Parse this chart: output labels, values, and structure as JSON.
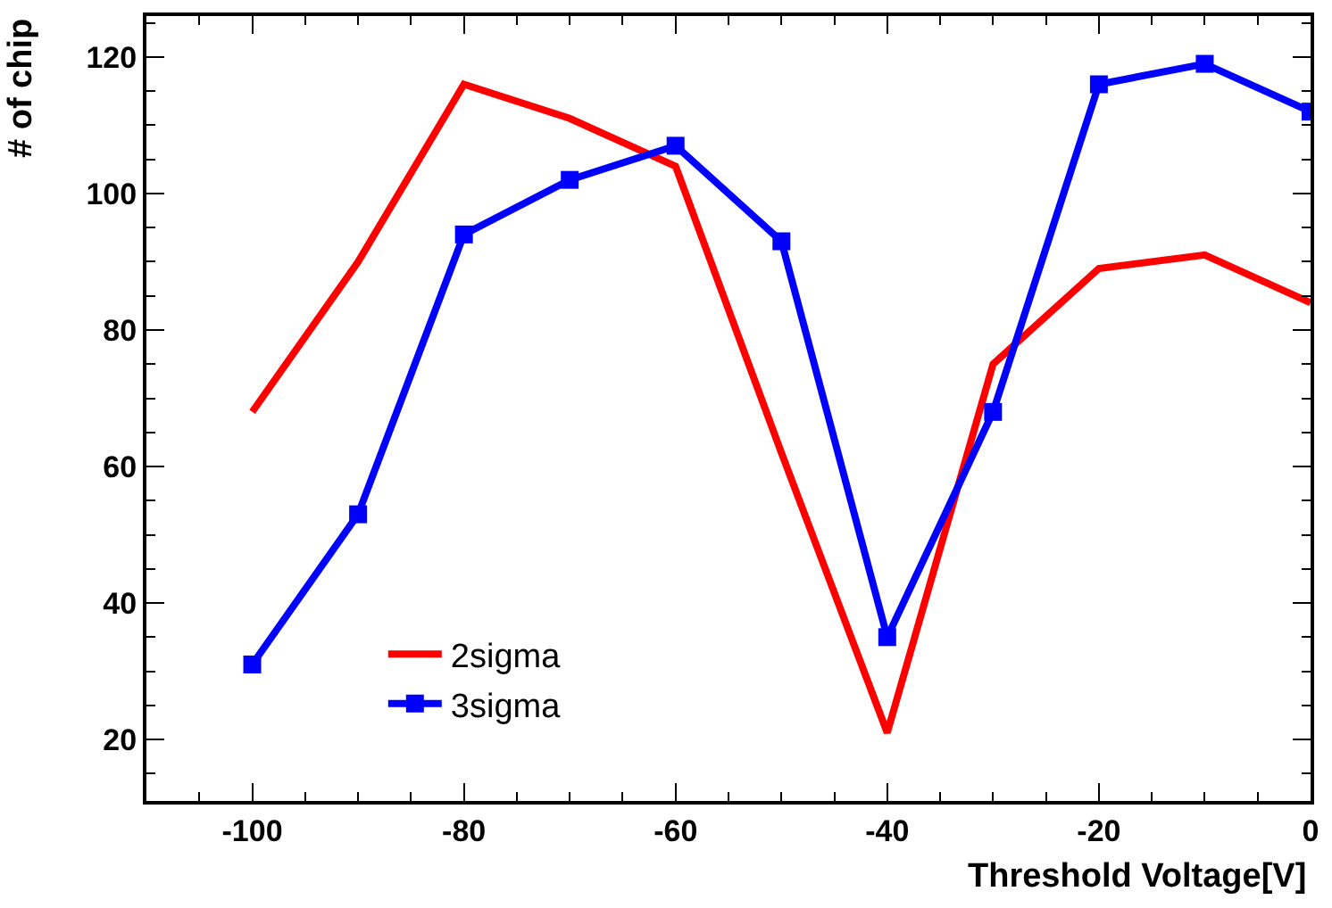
{
  "chart_data": {
    "type": "line",
    "xlabel": "Threshold Voltage[V]",
    "ylabel": "# of chip",
    "x": [
      -100,
      -90,
      -80,
      -70,
      -60,
      -50,
      -40,
      -30,
      -20,
      -10,
      0
    ],
    "series": [
      {
        "name": "2sigma",
        "color": "#ff0000",
        "marker": "none",
        "values": [
          68,
          90,
          116,
          111,
          104,
          62,
          21,
          75,
          89,
          91,
          84
        ]
      },
      {
        "name": "3sigma",
        "color": "#0000ff",
        "marker": "square",
        "values": [
          31,
          53,
          94,
          102,
          107,
          93,
          35,
          68,
          116,
          119,
          112
        ]
      }
    ],
    "xlim": [
      -110,
      0
    ],
    "ylim": [
      11,
      126
    ],
    "xticks": [
      -100,
      -80,
      -60,
      -40,
      -20,
      0
    ],
    "yticks": [
      20,
      40,
      60,
      80,
      100,
      120
    ],
    "legend": "bottom left",
    "line_style": "solid"
  }
}
